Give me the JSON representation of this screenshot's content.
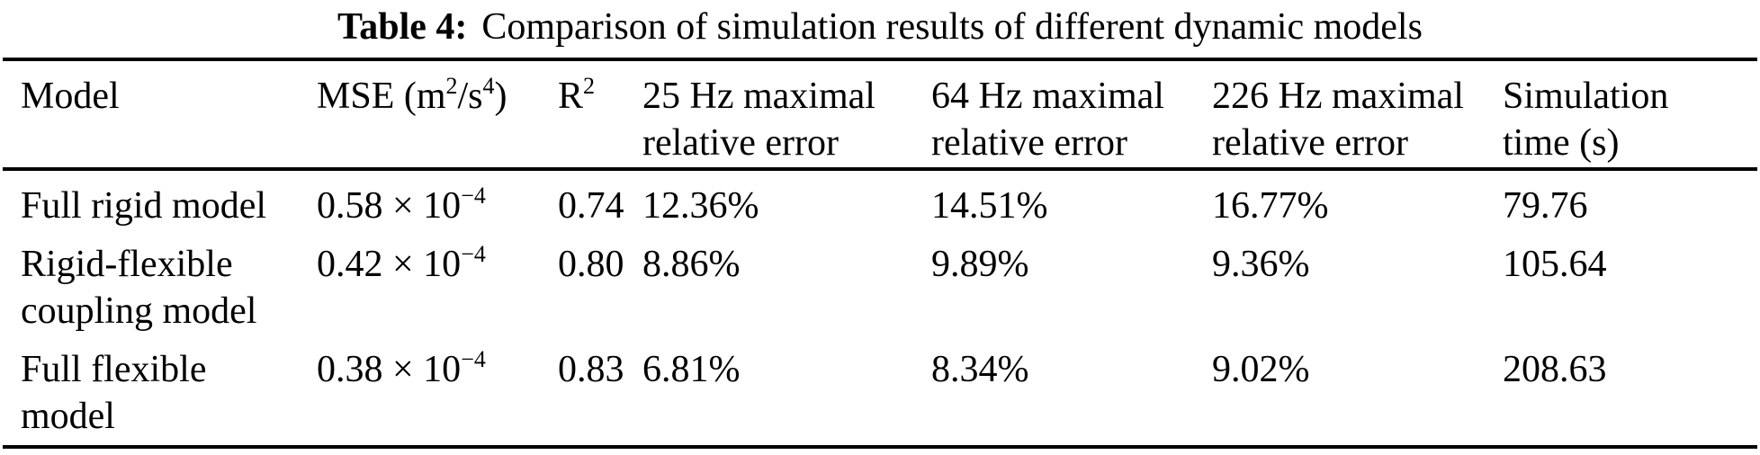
{
  "colors": {
    "text": "#000000",
    "background": "#ffffff",
    "rule": "#000000"
  },
  "caption": {
    "label": "Table 4:",
    "text": "Comparison of simulation results of different dynamic models"
  },
  "table": {
    "headers": [
      {
        "id": "model",
        "lines": [
          [
            {
              "t": "Model"
            }
          ]
        ]
      },
      {
        "id": "mse",
        "lines": [
          [
            {
              "t": "MSE (m"
            },
            {
              "t": "2",
              "sup": true
            },
            {
              "t": "/s"
            },
            {
              "t": "4",
              "sup": true
            },
            {
              "t": ")"
            }
          ]
        ]
      },
      {
        "id": "r-squared",
        "lines": [
          [
            {
              "t": "R"
            },
            {
              "t": "2",
              "sup": true
            }
          ]
        ]
      },
      {
        "id": "err-25hz",
        "lines": [
          [
            {
              "t": "25 Hz maximal"
            }
          ],
          [
            {
              "t": "relative error"
            }
          ]
        ]
      },
      {
        "id": "err-64hz",
        "lines": [
          [
            {
              "t": "64 Hz maximal"
            }
          ],
          [
            {
              "t": "relative error"
            }
          ]
        ]
      },
      {
        "id": "err-226hz",
        "lines": [
          [
            {
              "t": "226 Hz maximal"
            }
          ],
          [
            {
              "t": "relative error"
            }
          ]
        ]
      },
      {
        "id": "sim-time",
        "lines": [
          [
            {
              "t": "Simulation"
            }
          ],
          [
            {
              "t": "time (s)"
            }
          ]
        ]
      }
    ],
    "rows": [
      {
        "cells": [
          [
            [
              {
                "t": "Full rigid model"
              }
            ]
          ],
          [
            [
              {
                "t": "0.58 × 10"
              },
              {
                "t": "−4",
                "sup": true
              }
            ]
          ],
          [
            [
              {
                "t": "0.74"
              }
            ]
          ],
          [
            [
              {
                "t": "12.36%"
              }
            ]
          ],
          [
            [
              {
                "t": "14.51%"
              }
            ]
          ],
          [
            [
              {
                "t": "16.77%"
              }
            ]
          ],
          [
            [
              {
                "t": "79.76"
              }
            ]
          ]
        ]
      },
      {
        "cells": [
          [
            [
              {
                "t": "Rigid-flexible"
              }
            ],
            [
              {
                "t": "coupling model"
              }
            ]
          ],
          [
            [
              {
                "t": "0.42 × 10"
              },
              {
                "t": "−4",
                "sup": true
              }
            ]
          ],
          [
            [
              {
                "t": "0.80"
              }
            ]
          ],
          [
            [
              {
                "t": "8.86%"
              }
            ]
          ],
          [
            [
              {
                "t": "9.89%"
              }
            ]
          ],
          [
            [
              {
                "t": "9.36%"
              }
            ]
          ],
          [
            [
              {
                "t": "105.64"
              }
            ]
          ]
        ]
      },
      {
        "cells": [
          [
            [
              {
                "t": "Full flexible"
              }
            ],
            [
              {
                "t": "model"
              }
            ]
          ],
          [
            [
              {
                "t": "0.38 × 10"
              },
              {
                "t": "−4",
                "sup": true
              }
            ]
          ],
          [
            [
              {
                "t": "0.83"
              }
            ]
          ],
          [
            [
              {
                "t": "6.81%"
              }
            ]
          ],
          [
            [
              {
                "t": "8.34%"
              }
            ]
          ],
          [
            [
              {
                "t": "9.02%"
              }
            ]
          ],
          [
            [
              {
                "t": "208.63"
              }
            ]
          ]
        ]
      }
    ]
  }
}
